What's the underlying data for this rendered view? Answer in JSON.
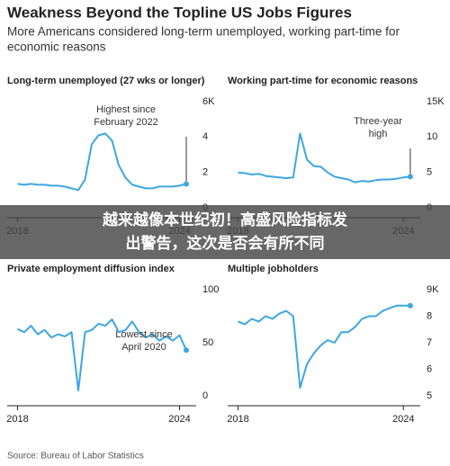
{
  "header": {
    "title": "Weakness Beyond the Topline US Jobs Figures",
    "subtitle": [
      "More Americans considered long-term unemployed, working part-time for",
      "economic reasons"
    ]
  },
  "banner": [
    "越来越像本世纪初！高盛风险指标发",
    "出警告，这次是否会有所不同"
  ],
  "source": "Source: Bureau of Labor Statistics",
  "chart_data": [
    {
      "type": "line",
      "title": "Long-term unemployed (27 wks or longer)",
      "color": "#3ea6e0",
      "annotation": [
        "Highest since",
        "February 2022"
      ],
      "xlim": [
        2017.95,
        2024.45
      ],
      "xticks": [
        2018,
        2024
      ],
      "ylim": [
        0,
        6
      ],
      "yticks": [
        {
          "value": 6,
          "label": "6K"
        },
        4,
        2,
        0
      ],
      "x": [
        2018,
        2018.25,
        2018.5,
        2018.75,
        2019,
        2019.25,
        2019.5,
        2019.75,
        2020,
        2020.25,
        2020.5,
        2020.75,
        2021,
        2021.25,
        2021.5,
        2021.75,
        2022,
        2022.25,
        2022.5,
        2022.75,
        2023,
        2023.25,
        2023.5,
        2023.75,
        2024,
        2024.25
      ],
      "values": [
        1.35,
        1.3,
        1.35,
        1.3,
        1.3,
        1.25,
        1.25,
        1.2,
        1.1,
        1.0,
        1.6,
        3.6,
        4.1,
        4.2,
        3.8,
        2.4,
        1.7,
        1.3,
        1.2,
        1.1,
        1.1,
        1.2,
        1.2,
        1.2,
        1.25,
        1.35
      ]
    },
    {
      "type": "line",
      "title": "Working part-time for economic reasons",
      "color": "#3ea6e0",
      "annotation": [
        "Three-year",
        "high"
      ],
      "xlim": [
        2017.95,
        2024.45
      ],
      "xticks": [
        2018,
        2024
      ],
      "ylim": [
        0,
        15
      ],
      "yticks": [
        {
          "value": 15,
          "label": "15K"
        },
        10,
        5,
        0
      ],
      "x": [
        2018,
        2018.25,
        2018.5,
        2018.75,
        2019,
        2019.25,
        2019.5,
        2019.75,
        2020,
        2020.25,
        2020.5,
        2020.75,
        2021,
        2021.25,
        2021.5,
        2021.75,
        2022,
        2022.25,
        2022.5,
        2022.75,
        2023,
        2023.25,
        2023.5,
        2023.75,
        2024,
        2024.25
      ],
      "values": [
        5.0,
        4.9,
        4.7,
        4.8,
        4.5,
        4.4,
        4.3,
        4.2,
        4.3,
        10.5,
        6.8,
        5.9,
        5.8,
        5.0,
        4.4,
        4.2,
        4.0,
        3.6,
        3.8,
        3.7,
        3.9,
        4.0,
        4.0,
        4.1,
        4.3,
        4.4
      ]
    },
    {
      "type": "line",
      "title": "Private employment diffusion index",
      "color": "#3ea6e0",
      "annotation": [
        "Lowest since",
        "April 2020"
      ],
      "xlim": [
        2017.95,
        2024.45
      ],
      "xticks": [
        2018,
        2024
      ],
      "ylim": [
        0,
        100
      ],
      "yticks": [
        100,
        50,
        0
      ],
      "x": [
        2018,
        2018.25,
        2018.5,
        2018.75,
        2019,
        2019.25,
        2019.5,
        2019.75,
        2020,
        2020.25,
        2020.5,
        2020.75,
        2021,
        2021.25,
        2021.5,
        2021.75,
        2022,
        2022.25,
        2022.5,
        2022.75,
        2023,
        2023.25,
        2023.5,
        2023.75,
        2024,
        2024.25
      ],
      "values": [
        63,
        60,
        66,
        58,
        62,
        55,
        58,
        56,
        60,
        5,
        60,
        62,
        68,
        66,
        72,
        60,
        62,
        70,
        60,
        55,
        58,
        52,
        56,
        52,
        57,
        43
      ]
    },
    {
      "type": "line",
      "title": "Multiple jobholders",
      "color": "#3ea6e0",
      "xlim": [
        2017.95,
        2024.45
      ],
      "xticks": [
        2018,
        2024
      ],
      "ylim": [
        5,
        9
      ],
      "yticks": [
        {
          "value": 9,
          "label": "9K"
        },
        8,
        7,
        6,
        5
      ],
      "x": [
        2018,
        2018.25,
        2018.5,
        2018.75,
        2019,
        2019.25,
        2019.5,
        2019.75,
        2020,
        2020.25,
        2020.5,
        2020.75,
        2021,
        2021.25,
        2021.5,
        2021.75,
        2022,
        2022.25,
        2022.5,
        2022.75,
        2023,
        2023.25,
        2023.5,
        2023.75,
        2024,
        2024.25
      ],
      "values": [
        7.8,
        7.7,
        7.9,
        7.8,
        8.0,
        7.9,
        8.1,
        8.2,
        8.0,
        5.3,
        6.2,
        6.6,
        6.9,
        7.1,
        7.0,
        7.4,
        7.4,
        7.6,
        7.9,
        8.0,
        8.0,
        8.2,
        8.3,
        8.4,
        8.4,
        8.4
      ]
    }
  ]
}
